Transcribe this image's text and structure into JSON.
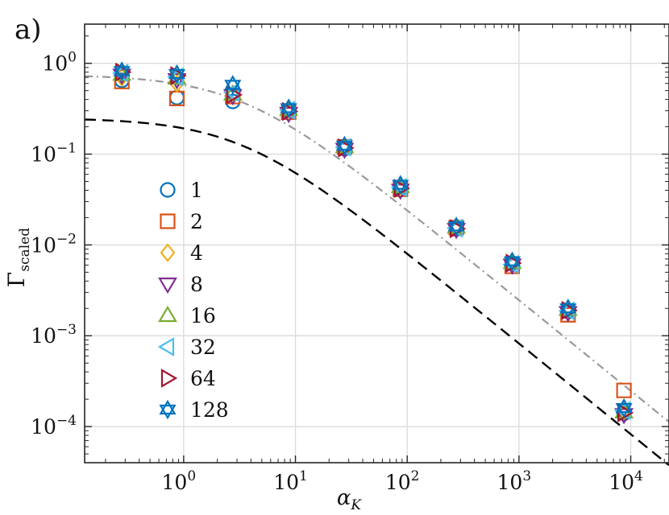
{
  "chart_data": {
    "type": "scatter",
    "panel_label": "a)",
    "xlabel_main": "α",
    "xlabel_sub": "K",
    "ylabel_main": "Γ",
    "ylabel_sub": "scaled",
    "xscale": "log",
    "yscale": "log",
    "xlim": [
      0.13,
      22000
    ],
    "ylim": [
      4e-05,
      2.7
    ],
    "x_ticks": [
      {
        "value": 1,
        "base": "10",
        "exp": "0"
      },
      {
        "value": 10,
        "base": "10",
        "exp": "1"
      },
      {
        "value": 100,
        "base": "10",
        "exp": "2"
      },
      {
        "value": 1000,
        "base": "10",
        "exp": "3"
      },
      {
        "value": 10000,
        "base": "10",
        "exp": "4"
      }
    ],
    "y_ticks": [
      {
        "value": 1,
        "base": "10",
        "exp": "0"
      },
      {
        "value": 0.1,
        "base": "10",
        "exp": "−1"
      },
      {
        "value": 0.01,
        "base": "10",
        "exp": "−2"
      },
      {
        "value": 0.001,
        "base": "10",
        "exp": "−3"
      },
      {
        "value": 0.0001,
        "base": "10",
        "exp": "−4"
      }
    ],
    "grid": true,
    "legend_position": "left-middle",
    "x": [
      0.28,
      0.87,
      2.75,
      8.7,
      27.5,
      87,
      275,
      870,
      2750,
      8700
    ],
    "series": [
      {
        "name": "1",
        "marker": "circle",
        "color": "#0072BD",
        "values": [
          0.65,
          0.42,
          0.38,
          0.3,
          0.115,
          0.042,
          0.015,
          0.0063,
          0.00185,
          0.00014
        ]
      },
      {
        "name": "2",
        "marker": "square",
        "color": "#D95319",
        "values": [
          0.63,
          0.41,
          0.43,
          0.29,
          0.12,
          0.041,
          0.0155,
          0.0058,
          0.0017,
          0.00025
        ]
      },
      {
        "name": "4",
        "marker": "diamond",
        "color": "#EDB120",
        "values": [
          0.7,
          0.6,
          0.45,
          0.3,
          0.118,
          0.043,
          0.0152,
          0.0062,
          0.0019,
          0.00015
        ]
      },
      {
        "name": "8",
        "marker": "triangle-down",
        "color": "#7E2F8E",
        "values": [
          0.74,
          0.66,
          0.44,
          0.28,
          0.113,
          0.04,
          0.0148,
          0.006,
          0.0018,
          0.000135
        ]
      },
      {
        "name": "16",
        "marker": "triangle-up",
        "color": "#77AC30",
        "values": [
          0.76,
          0.69,
          0.46,
          0.31,
          0.121,
          0.044,
          0.0157,
          0.0064,
          0.00195,
          0.000145
        ]
      },
      {
        "name": "32",
        "marker": "triangle-left",
        "color": "#4DBEEE",
        "values": [
          0.78,
          0.71,
          0.48,
          0.305,
          0.119,
          0.043,
          0.0153,
          0.0061,
          0.00188,
          0.00015
        ]
      },
      {
        "name": "64",
        "marker": "triangle-right",
        "color": "#A2142F",
        "values": [
          0.8,
          0.73,
          0.45,
          0.295,
          0.117,
          0.042,
          0.0151,
          0.0063,
          0.0019,
          0.000142
        ]
      },
      {
        "name": "128",
        "marker": "star",
        "color": "#0072BD",
        "values": [
          0.82,
          0.76,
          0.58,
          0.32,
          0.124,
          0.046,
          0.016,
          0.0066,
          0.002,
          0.00016
        ]
      }
    ],
    "reference_curves": [
      {
        "name": "dash-dot fit",
        "style": "dashdot",
        "color": "#999999",
        "amplitude": 0.75,
        "scale": 3.3
      },
      {
        "name": "dashed fit",
        "style": "dashed",
        "color": "#000000",
        "amplitude": 0.25,
        "scale": 3.3
      }
    ]
  }
}
